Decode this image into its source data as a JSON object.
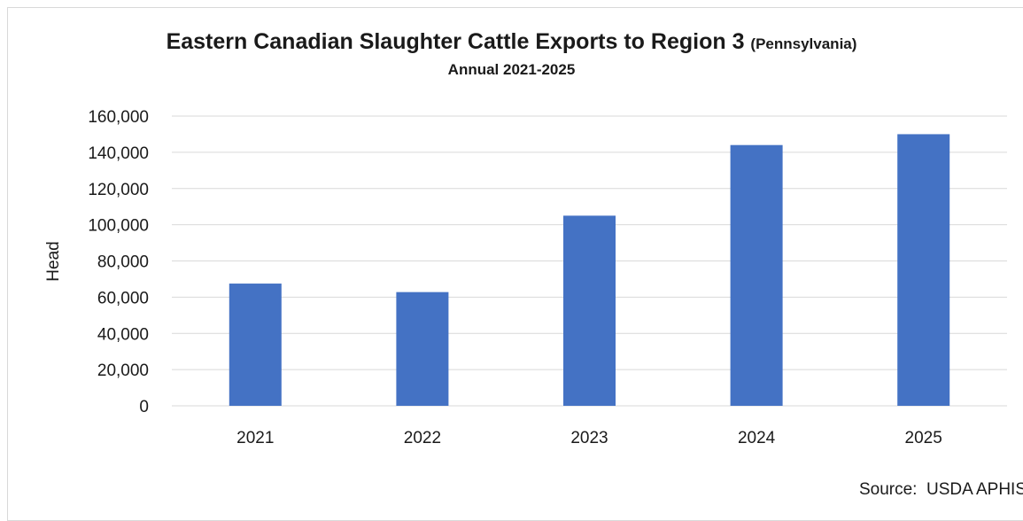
{
  "chart_data": {
    "type": "bar",
    "title": "Eastern Canadian Slaughter Cattle Exports to Region 3",
    "title_suffix": "(Pennsylvania)",
    "subtitle": "Annual 2021-2025",
    "xlabel": "",
    "ylabel": "Head",
    "categories": [
      "2021",
      "2022",
      "2023",
      "2024",
      "2025"
    ],
    "values": [
      67500,
      62800,
      105000,
      144000,
      150000
    ],
    "ylim": [
      0,
      160000
    ],
    "yticks": [
      0,
      20000,
      40000,
      60000,
      80000,
      100000,
      120000,
      140000,
      160000
    ],
    "ytick_labels": [
      "0",
      "20,000",
      "40,000",
      "60,000",
      "80,000",
      "100,000",
      "120,000",
      "140,000",
      "160,000"
    ],
    "grid": true,
    "legend": "none",
    "bar_color": "#4472c4",
    "gridline_color": "#d9d9d9"
  },
  "source": "Source:  USDA APHIS"
}
